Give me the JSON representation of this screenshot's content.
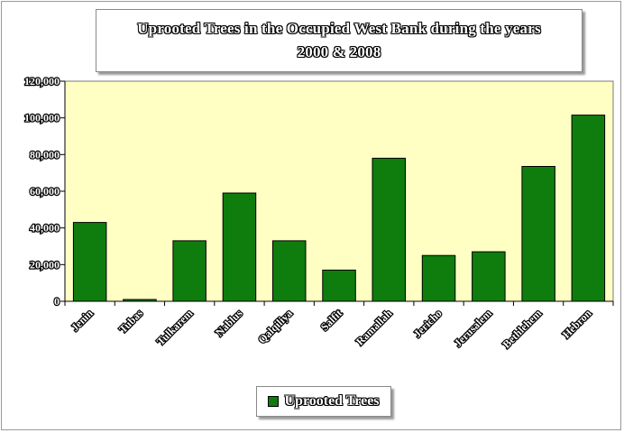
{
  "chart_data": {
    "type": "bar",
    "title_lines": [
      "Uprooted Trees in the Occupied West Bank during the years",
      "2000 & 2008"
    ],
    "xlabel": "",
    "ylabel": "",
    "categories": [
      "Jenin",
      "Tubas",
      "Tulkarem",
      "Nablus",
      "Qalqiliya",
      "Salfit",
      "Ramallah",
      "Jericho",
      "Jerusalem",
      "Bethlehem",
      "Hebron"
    ],
    "series": [
      {
        "name": "Uprooted Trees",
        "values": [
          43000,
          1000,
          33000,
          59000,
          33000,
          17000,
          78000,
          25000,
          27000,
          73500,
          101500
        ]
      }
    ],
    "ylim": [
      0,
      120000
    ],
    "yticks": [
      0,
      20000,
      40000,
      60000,
      80000,
      100000,
      120000
    ],
    "ytick_labels": [
      "0",
      "20,000",
      "40,000",
      "60,000",
      "80,000",
      "100,000",
      "120,000"
    ],
    "grid": false,
    "legend_position": "bottom",
    "colors": {
      "bar": "#0e7d0e",
      "plot_background": "#ffffc4"
    }
  }
}
